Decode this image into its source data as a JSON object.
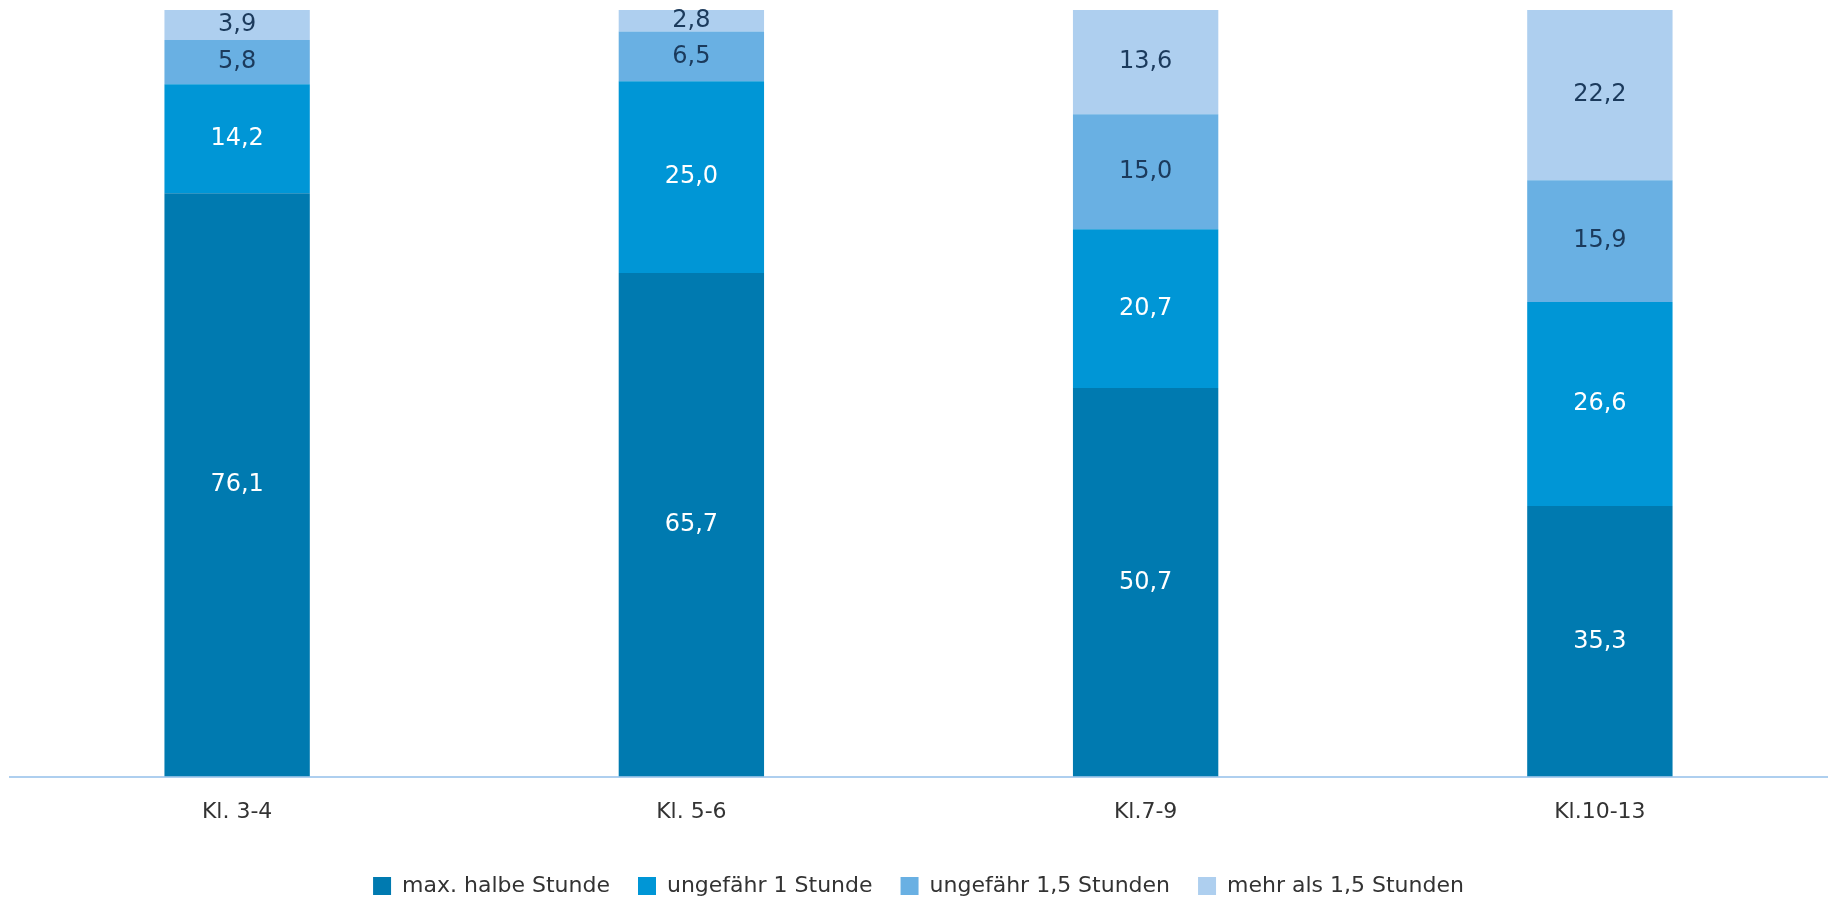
{
  "chart_data": {
    "type": "bar",
    "stacked": true,
    "legend": "bottom",
    "grid": false,
    "categories": [
      "Kl. 3-4",
      "Kl. 5-6",
      "Kl.7-9",
      "Kl.10-13"
    ],
    "series": [
      {
        "name": "max. halbe Stunde",
        "color": "#007ab0",
        "values": [
          76.1,
          65.7,
          50.7,
          35.3
        ],
        "value_labels": [
          "76,1",
          "65,7",
          "50,7",
          "35,3"
        ]
      },
      {
        "name": "ungefähr 1 Stunde",
        "color": "#0096d6",
        "values": [
          14.2,
          25.0,
          20.7,
          26.6
        ],
        "value_labels": [
          "14,2",
          "25,0",
          "20,7",
          "26,6"
        ]
      },
      {
        "name": "ungefähr 1,5 Stunden",
        "color": "#69b0e3",
        "values": [
          5.8,
          6.5,
          15.0,
          15.9
        ],
        "value_labels": [
          "5,8",
          "6,5",
          "15,0",
          "15,9"
        ]
      },
      {
        "name": "mehr als 1,5 Stunden",
        "color": "#aecfef",
        "values": [
          3.9,
          2.8,
          13.6,
          22.2
        ],
        "value_labels": [
          "3,9",
          "2,8",
          "13,6",
          "22,2"
        ]
      }
    ]
  }
}
